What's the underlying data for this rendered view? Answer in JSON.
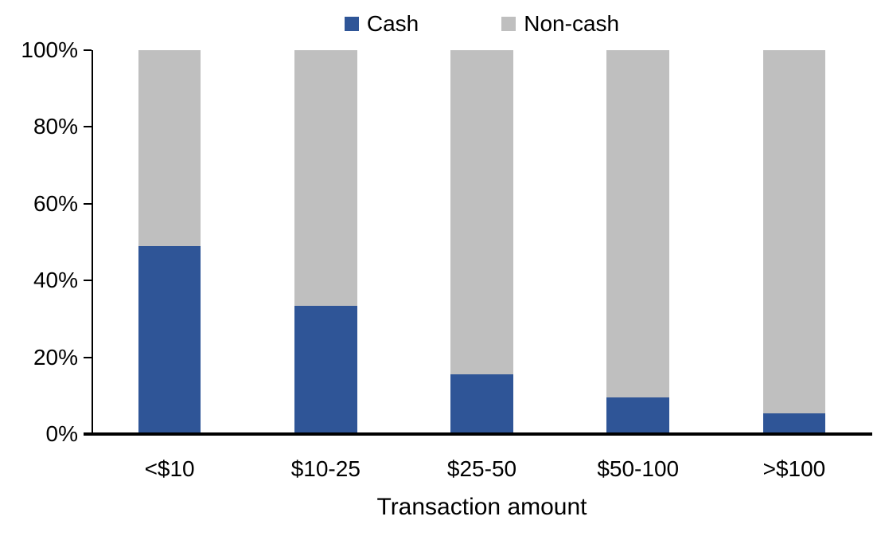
{
  "chart_data": {
    "type": "bar",
    "stacked": true,
    "percent_stacked": true,
    "title": "",
    "xlabel": "Transaction amount",
    "ylabel": "",
    "categories": [
      "<$10",
      "$10-25",
      "$25-50",
      "$50-100",
      ">$100"
    ],
    "series": [
      {
        "name": "Cash",
        "color": "#2F5597",
        "values": [
          49,
          33.5,
          15.6,
          9.5,
          5.5
        ]
      },
      {
        "name": "Non-cash",
        "color": "#BFBFBF",
        "values": [
          51,
          66.5,
          84.4,
          90.5,
          94.5
        ]
      }
    ],
    "ylim": [
      0,
      100
    ],
    "y_tick_labels": [
      "0%",
      "20%",
      "40%",
      "60%",
      "80%",
      "100%"
    ],
    "grid": false,
    "legend_position": "top",
    "axis_color": "#000000",
    "background_color": "#FFFFFF"
  }
}
